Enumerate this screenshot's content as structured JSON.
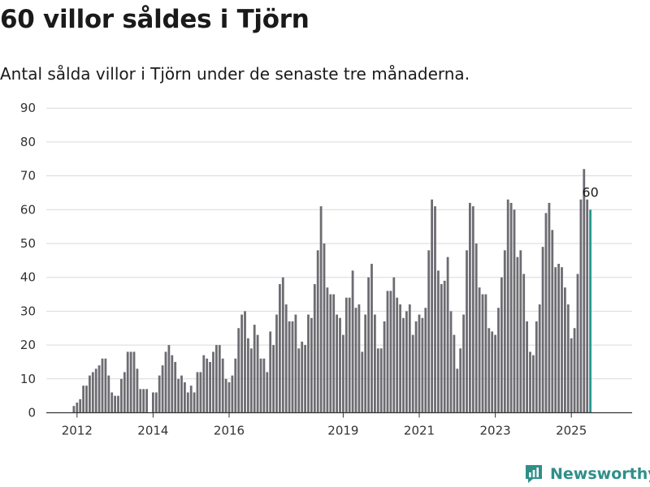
{
  "title": "60 villor såldes i Tjörn",
  "subtitle": "Antal sålda villor i Tjörn under de senaste tre månaderna.",
  "brand": {
    "name": "Newsworthy"
  },
  "colors": {
    "bar": "#6d6c72",
    "highlight": "#26978f",
    "grid": "#d9d9d9",
    "axis": "#333333"
  },
  "chart_data": {
    "type": "bar",
    "title": "60 villor såldes i Tjörn",
    "subtitle": "Antal sålda villor i Tjörn under de senaste tre månaderna.",
    "xlabel": "",
    "ylabel": "",
    "ylim": [
      0,
      90
    ],
    "yticks": [
      0,
      10,
      20,
      30,
      40,
      50,
      60,
      70,
      80,
      90
    ],
    "xticks": [
      {
        "label": "2012",
        "index": 1
      },
      {
        "label": "2014",
        "index": 25
      },
      {
        "label": "2016",
        "index": 49
      },
      {
        "label": "2019",
        "index": 85
      },
      {
        "label": "2021",
        "index": 109
      },
      {
        "label": "2023",
        "index": 133
      },
      {
        "label": "2025",
        "index": 157
      }
    ],
    "grid": true,
    "values": [
      2,
      3,
      4,
      8,
      8,
      11,
      12,
      13,
      14,
      16,
      16,
      11,
      6,
      5,
      5,
      10,
      12,
      18,
      18,
      18,
      13,
      7,
      7,
      7,
      0,
      6,
      6,
      11,
      14,
      18,
      20,
      17,
      15,
      10,
      11,
      9,
      6,
      8,
      6,
      12,
      12,
      17,
      16,
      15,
      18,
      20,
      20,
      16,
      10,
      9,
      11,
      16,
      25,
      29,
      30,
      22,
      19,
      26,
      23,
      16,
      16,
      12,
      24,
      20,
      29,
      38,
      40,
      32,
      27,
      27,
      29,
      19,
      21,
      20,
      29,
      28,
      38,
      48,
      61,
      50,
      37,
      35,
      35,
      29,
      28,
      23,
      34,
      34,
      42,
      31,
      32,
      18,
      29,
      40,
      44,
      29,
      19,
      19,
      27,
      36,
      36,
      40,
      34,
      32,
      28,
      30,
      32,
      23,
      27,
      29,
      28,
      31,
      48,
      63,
      61,
      42,
      38,
      39,
      46,
      30,
      23,
      13,
      19,
      29,
      48,
      62,
      61,
      50,
      37,
      35,
      35,
      25,
      24,
      23,
      31,
      40,
      48,
      63,
      62,
      60,
      46,
      48,
      41,
      27,
      18,
      17,
      27,
      32,
      49,
      59,
      62,
      54,
      43,
      44,
      43,
      37,
      32,
      22,
      25,
      41,
      63,
      72,
      63,
      60
    ],
    "highlight_index": 163,
    "data_labels": [
      {
        "index": 163,
        "text": "60"
      }
    ]
  }
}
